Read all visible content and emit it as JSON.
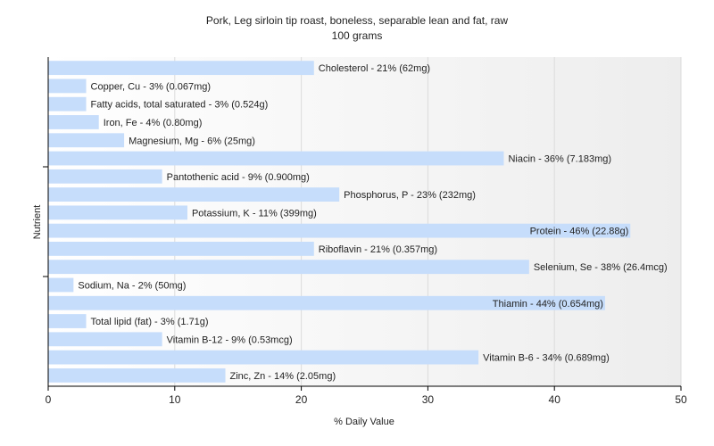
{
  "chart_data": {
    "type": "bar",
    "orientation": "horizontal",
    "title": "Pork, Leg sirloin tip roast, boneless, separable lean and fat, raw",
    "subtitle": "100 grams",
    "xlabel": "% Daily Value",
    "ylabel": "Nutrient",
    "xlim": [
      0,
      50
    ],
    "xticks": [
      0,
      10,
      20,
      30,
      40,
      50
    ],
    "grid": true,
    "bar_color": "#c6ddfb",
    "categories": [
      "Cholesterol",
      "Copper, Cu",
      "Fatty acids, total saturated",
      "Iron, Fe",
      "Magnesium, Mg",
      "Niacin",
      "Pantothenic acid",
      "Phosphorus, P",
      "Potassium, K",
      "Protein",
      "Riboflavin",
      "Selenium, Se",
      "Sodium, Na",
      "Thiamin",
      "Total lipid (fat)",
      "Vitamin B-12",
      "Vitamin B-6",
      "Zinc, Zn"
    ],
    "values": [
      21,
      3,
      3,
      4,
      6,
      36,
      9,
      23,
      11,
      46,
      21,
      38,
      2,
      44,
      3,
      9,
      34,
      14
    ],
    "labels": [
      "Cholesterol - 21% (62mg)",
      "Copper, Cu - 3% (0.067mg)",
      "Fatty acids, total saturated - 3% (0.524g)",
      "Iron, Fe - 4% (0.80mg)",
      "Magnesium, Mg - 6% (25mg)",
      "Niacin - 36% (7.183mg)",
      "Pantothenic acid - 9% (0.900mg)",
      "Phosphorus, P - 23% (232mg)",
      "Potassium, K - 11% (399mg)",
      "Protein - 46% (22.88g)",
      "Riboflavin - 21% (0.357mg)",
      "Selenium, Se - 38% (26.4mcg)",
      "Sodium, Na - 2% (50mg)",
      "Thiamin - 44% (0.654mg)",
      "Total lipid (fat) - 3% (1.71g)",
      "Vitamin B-12 - 9% (0.53mcg)",
      "Vitamin B-6 - 34% (0.689mg)",
      "Zinc, Zn - 14% (2.05mg)"
    ]
  }
}
